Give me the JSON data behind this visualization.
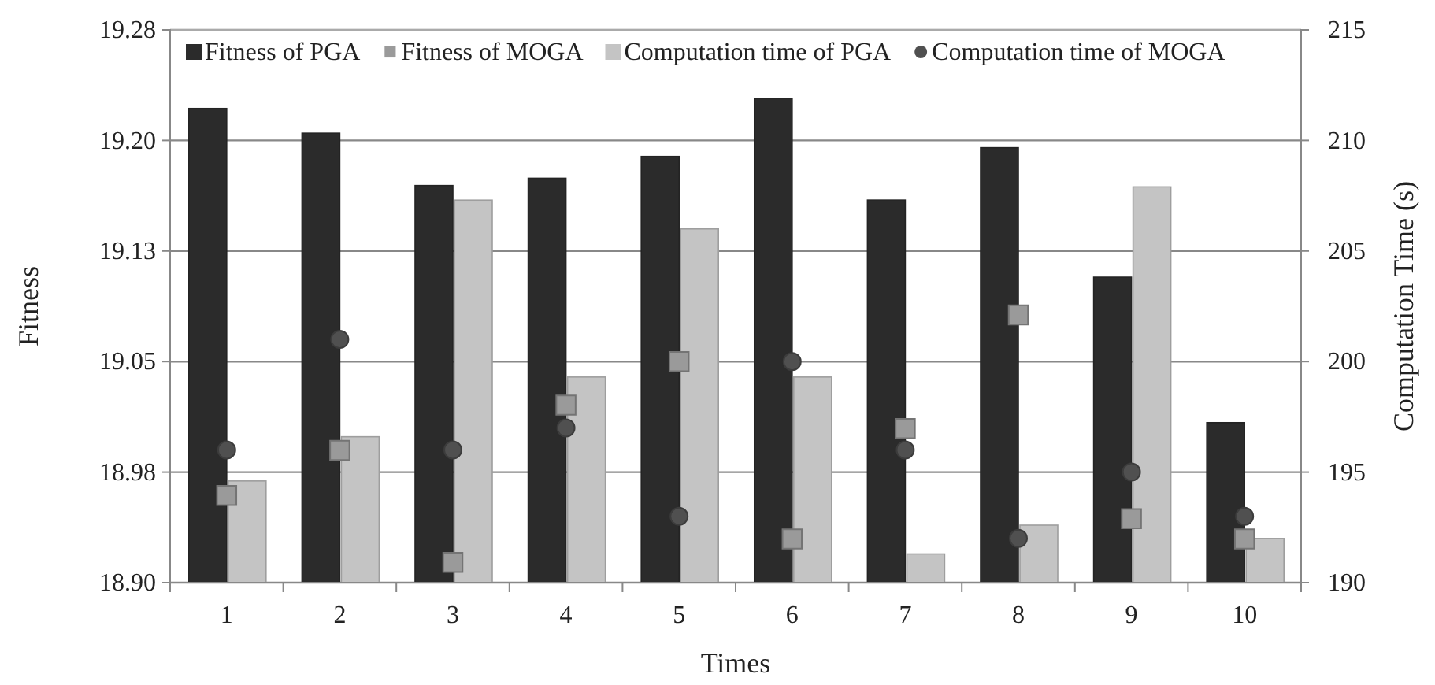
{
  "chart_data": {
    "type": "bar",
    "xlabel": "Times",
    "ylabel": "Fitness",
    "y2label": "Computation Time (s)",
    "categories": [
      "1",
      "2",
      "3",
      "4",
      "5",
      "6",
      "7",
      "8",
      "9",
      "10"
    ],
    "series": [
      {
        "name": "Fitness of PGA",
        "color": "#2b2b2b",
        "values": [
          19.226,
          19.209,
          19.173,
          19.178,
          19.193,
          19.233,
          19.163,
          19.199,
          19.11,
          19.01
        ]
      },
      {
        "name": "Fitness of MOGA",
        "type": "scatter",
        "marker": "square",
        "color": "#9a9a9a",
        "values": [
          18.96,
          18.991,
          18.914,
          19.022,
          19.052,
          18.93,
          19.006,
          19.084,
          18.944,
          18.93
        ]
      },
      {
        "name": "Computation time of PGA",
        "axis": "y2",
        "color": "#c4c4c4",
        "values": [
          194.6,
          196.6,
          207.3,
          199.3,
          206.0,
          199.3,
          191.3,
          192.6,
          207.9,
          192.0
        ]
      },
      {
        "name": "Computation time of MOGA",
        "type": "scatter",
        "axis": "y2",
        "marker": "circle",
        "color": "#505050",
        "values": [
          196,
          201,
          196,
          197,
          193,
          200,
          196,
          192,
          195,
          193
        ]
      }
    ],
    "ylim": [
      18.9,
      19.28
    ],
    "yticks": [
      {
        "value": 18.9,
        "label": "18.90"
      },
      {
        "value": 18.976,
        "label": "18.98"
      },
      {
        "value": 19.052,
        "label": "19.05"
      },
      {
        "value": 19.128,
        "label": "19.13"
      },
      {
        "value": 19.204,
        "label": "19.20"
      },
      {
        "value": 19.28,
        "label": "19.28"
      }
    ],
    "y2lim": [
      190,
      215
    ],
    "y2ticks": [
      190,
      195,
      200,
      205,
      210,
      215
    ],
    "grid": "y",
    "legend": "top"
  }
}
